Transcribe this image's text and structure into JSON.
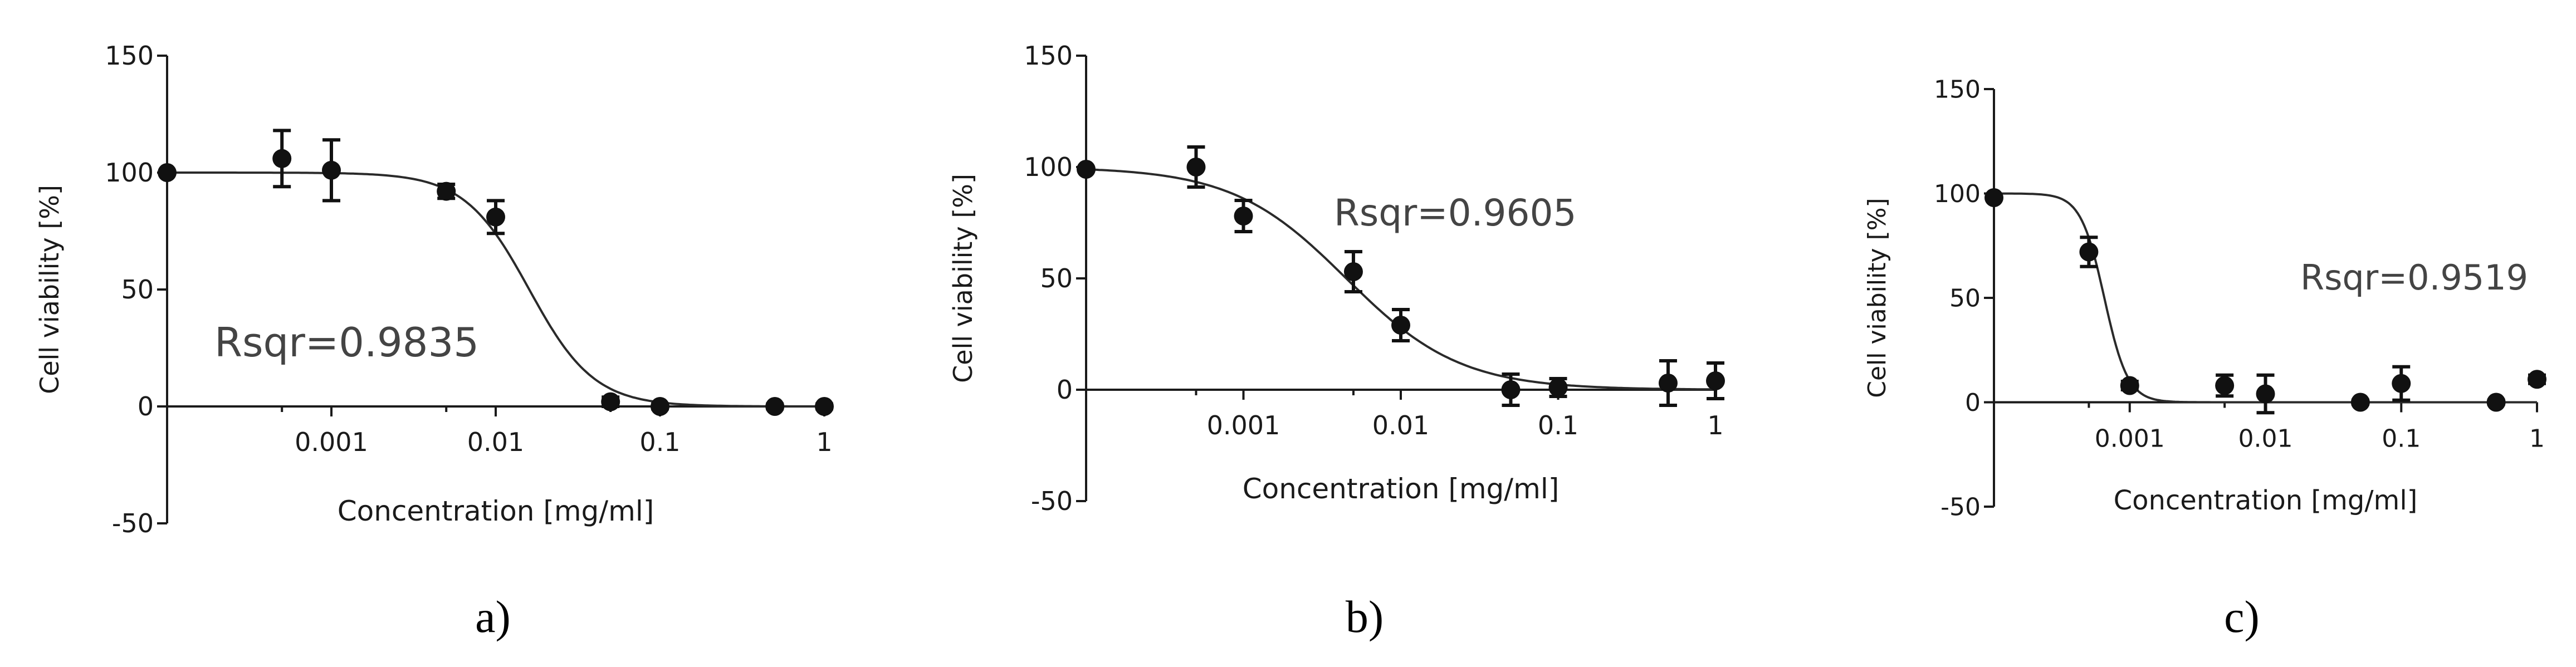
{
  "chart_data": [
    {
      "type": "scatter",
      "panel_label": "a)",
      "xlabel": "Concentration [mg/ml]",
      "ylabel": "Cell viability [%]",
      "xscale": "log",
      "xlim": [
        0.0001,
        1
      ],
      "ylim": [
        -50,
        150
      ],
      "y_ticks": [
        "150",
        "100",
        "50",
        "0",
        "-50"
      ],
      "x_ticks": [
        "0.001",
        "0.01",
        "0.1",
        "1"
      ],
      "annotation": "Rsqr=0.9835",
      "fit": {
        "top": 100,
        "bottom": 0,
        "ec50": 0.016,
        "hill": 2.2
      },
      "series": [
        {
          "x": [
            0.0001,
            0.0005,
            0.001,
            0.005,
            0.01,
            0.05,
            0.1,
            0.5,
            1
          ],
          "y": [
            100,
            106,
            101,
            92,
            81,
            2,
            0,
            0,
            0
          ],
          "err": [
            0,
            12,
            13,
            3,
            7,
            2,
            1,
            1,
            1
          ]
        }
      ]
    },
    {
      "type": "scatter",
      "panel_label": "b)",
      "xlabel": "Concentration [mg/ml]",
      "ylabel": "Cell viability [%]",
      "xscale": "log",
      "xlim": [
        0.0001,
        1
      ],
      "ylim": [
        -50,
        150
      ],
      "y_ticks": [
        "150",
        "100",
        "50",
        "0",
        "-50"
      ],
      "x_ticks": [
        "0.001",
        "0.01",
        "0.1",
        "1"
      ],
      "annotation": "Rsqr=0.9605",
      "fit": {
        "top": 100,
        "bottom": 0,
        "ec50": 0.0045,
        "hill": 1.2
      },
      "series": [
        {
          "x": [
            0.0001,
            0.0005,
            0.001,
            0.005,
            0.01,
            0.05,
            0.1,
            0.5,
            1
          ],
          "y": [
            99,
            100,
            78,
            53,
            29,
            0,
            1,
            3,
            4
          ],
          "err": [
            0,
            9,
            7,
            9,
            7,
            7,
            4,
            10,
            8
          ]
        }
      ]
    },
    {
      "type": "scatter",
      "panel_label": "c)",
      "xlabel": "Concentration [mg/ml]",
      "ylabel": "Cell viability [%]",
      "xscale": "log",
      "xlim": [
        0.0001,
        1
      ],
      "ylim": [
        -50,
        150
      ],
      "y_ticks": [
        "150",
        "100",
        "50",
        "0",
        "-50"
      ],
      "x_ticks": [
        "0.001",
        "0.01",
        "0.1",
        "1"
      ],
      "annotation": "Rsqr=0.9519",
      "fit": {
        "top": 100,
        "bottom": 0,
        "ec50": 0.00065,
        "hill": 5
      },
      "series": [
        {
          "x": [
            0.0001,
            0.0005,
            0.001,
            0.005,
            0.01,
            0.05,
            0.1,
            0.5,
            1
          ],
          "y": [
            98,
            72,
            8,
            8,
            4,
            0,
            9,
            0,
            11
          ],
          "err": [
            0,
            7,
            2,
            5,
            9,
            1,
            8,
            1,
            2
          ]
        }
      ]
    }
  ]
}
